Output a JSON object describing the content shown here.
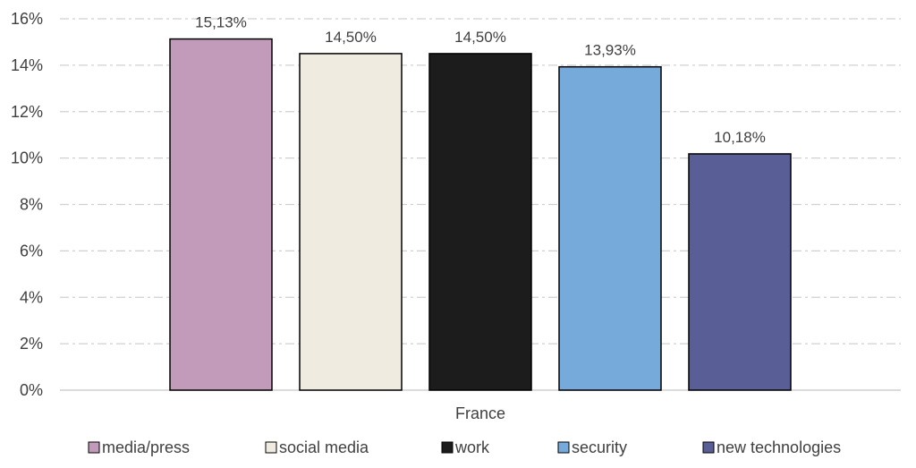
{
  "chart_data": {
    "type": "bar",
    "categories": [
      "France"
    ],
    "series": [
      {
        "name": "media/press",
        "values": [
          15.13
        ],
        "label": "15,13%",
        "color": "#c39bba"
      },
      {
        "name": "social media",
        "values": [
          14.5
        ],
        "label": "14,50%",
        "color": "#f0ebe0"
      },
      {
        "name": "work",
        "values": [
          14.5
        ],
        "label": "14,50%",
        "color": "#1c1c1c"
      },
      {
        "name": "security",
        "values": [
          13.93
        ],
        "label": "13,93%",
        "color": "#76aadb"
      },
      {
        "name": "new technologies",
        "values": [
          10.18
        ],
        "label": "10,18%",
        "color": "#595e96"
      }
    ],
    "y_ticks": [
      "0%",
      "2%",
      "4%",
      "6%",
      "8%",
      "10%",
      "12%",
      "14%",
      "16%"
    ],
    "ylim": [
      0,
      16
    ],
    "grid": true,
    "legend_position": "bottom",
    "title": "",
    "xlabel": "",
    "ylabel": ""
  }
}
